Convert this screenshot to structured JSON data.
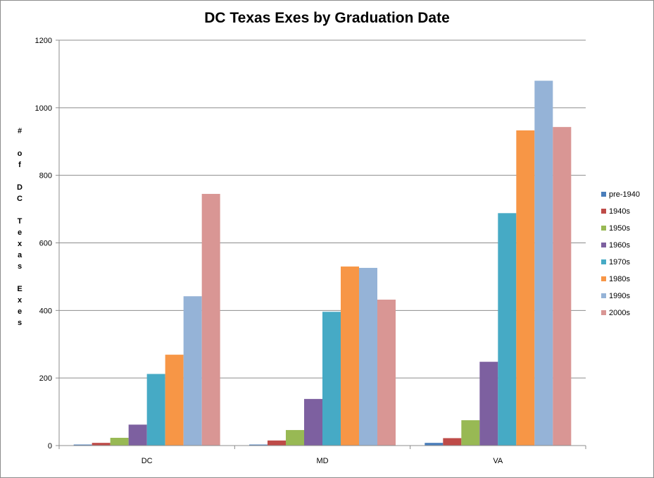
{
  "chart_data": {
    "type": "bar",
    "title": "DC Texas Exes by Graduation Date",
    "xlabel": "",
    "ylabel": "# of DC Texas Exes",
    "ylabel_lines": [
      "#",
      "",
      "o",
      "f",
      "",
      "D",
      "C",
      "",
      "T",
      "e",
      "x",
      "a",
      "s",
      "",
      "E",
      "x",
      "e",
      "s"
    ],
    "ylim": [
      0,
      1200
    ],
    "yticks": [
      0,
      200,
      400,
      600,
      800,
      1000,
      1200
    ],
    "grid": true,
    "legend_position": "right",
    "categories": [
      "DC",
      "MD",
      "VA"
    ],
    "series": [
      {
        "name": "pre-1940",
        "color": "#4a7ebb",
        "values": [
          3,
          3,
          8
        ]
      },
      {
        "name": "1940s",
        "color": "#be4b48",
        "values": [
          8,
          15,
          22
        ]
      },
      {
        "name": "1950s",
        "color": "#98b954",
        "values": [
          23,
          46,
          75
        ]
      },
      {
        "name": "1960s",
        "color": "#7d60a0",
        "values": [
          62,
          138,
          248
        ]
      },
      {
        "name": "1970s",
        "color": "#46aac5",
        "values": [
          212,
          396,
          688
        ]
      },
      {
        "name": "1980s",
        "color": "#f79646",
        "values": [
          269,
          530,
          933
        ]
      },
      {
        "name": "1990s",
        "color": "#95b3d7",
        "values": [
          442,
          526,
          1080
        ]
      },
      {
        "name": "2000s",
        "color": "#d99694",
        "values": [
          745,
          432,
          943
        ]
      }
    ]
  }
}
